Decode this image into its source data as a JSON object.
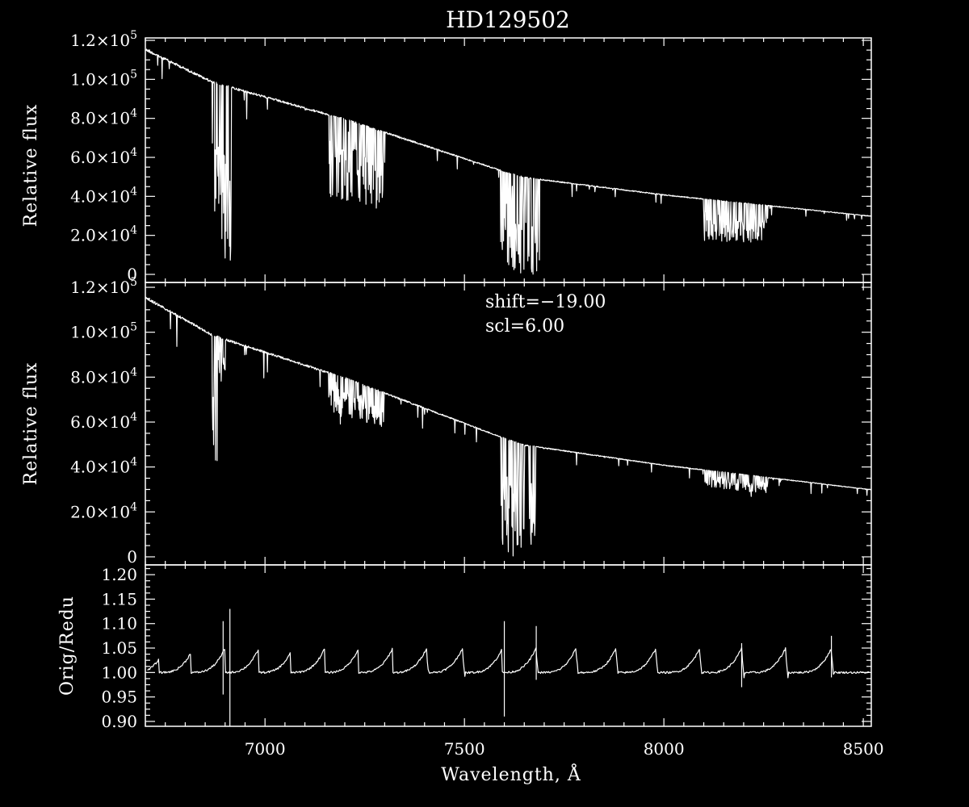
{
  "chart_data": {
    "type": "line",
    "title": "HD129502",
    "xlabel": "Wavelength, Å",
    "xlim": [
      6700,
      8520
    ],
    "x_ticks": [
      7000,
      7500,
      8000,
      8500
    ],
    "x_minor_step": 50,
    "grid": false,
    "panels": [
      {
        "id": "original",
        "ylabel": "Relative flux",
        "ylim": [
          0,
          120000
        ],
        "y_ticks": [
          {
            "value": 0,
            "label": "0"
          },
          {
            "value": 20000,
            "label": "2.0×10",
            "exp": "4"
          },
          {
            "value": 40000,
            "label": "4.0×10",
            "exp": "4"
          },
          {
            "value": 60000,
            "label": "6.0×10",
            "exp": "4"
          },
          {
            "value": 80000,
            "label": "8.0×10",
            "exp": "4"
          },
          {
            "value": 100000,
            "label": "1.0×10",
            "exp": "5"
          },
          {
            "value": 120000,
            "label": "1.2×10",
            "exp": "5"
          }
        ],
        "continuum": [
          [
            6700,
            116000
          ],
          [
            6870,
            99000
          ],
          [
            7200,
            80000
          ],
          [
            7600,
            53000
          ],
          [
            7650,
            50000
          ],
          [
            8000,
            41000
          ],
          [
            8520,
            30000
          ]
        ],
        "absorption_bands": [
          {
            "from": 6868,
            "to": 6915,
            "depth": 0.94
          },
          {
            "from": 7160,
            "to": 7300,
            "depth": 0.55
          },
          {
            "from": 7590,
            "to": 7690,
            "depth": 1.0
          },
          {
            "from": 8100,
            "to": 8260,
            "depth": 0.55
          }
        ],
        "noise": 0.012
      },
      {
        "id": "corrected",
        "ylabel": "Relative flux",
        "ylim": [
          0,
          120000
        ],
        "y_ticks": [
          {
            "value": 0,
            "label": "0"
          },
          {
            "value": 20000,
            "label": "2.0×10",
            "exp": "4"
          },
          {
            "value": 40000,
            "label": "4.0×10",
            "exp": "4"
          },
          {
            "value": 60000,
            "label": "6.0×10",
            "exp": "4"
          },
          {
            "value": 80000,
            "label": "8.0×10",
            "exp": "4"
          },
          {
            "value": 100000,
            "label": "1.0×10",
            "exp": "5"
          },
          {
            "value": 120000,
            "label": "1.2×10",
            "exp": "5"
          }
        ],
        "continuum": [
          [
            6700,
            116000
          ],
          [
            6870,
            99000
          ],
          [
            7200,
            80000
          ],
          [
            7600,
            53000
          ],
          [
            7650,
            50000
          ],
          [
            8000,
            41000
          ],
          [
            8520,
            30000
          ]
        ],
        "absorption_bands": [
          {
            "from": 6868,
            "to": 6880,
            "depth": 0.58
          },
          {
            "from": 6880,
            "to": 6900,
            "depth": 0.2
          },
          {
            "from": 7160,
            "to": 7300,
            "depth": 0.22
          },
          {
            "from": 7590,
            "to": 7680,
            "depth": 1.0
          },
          {
            "from": 8100,
            "to": 8260,
            "depth": 0.2
          }
        ],
        "noise": 0.01,
        "annotations": [
          "shift=−19.00",
          "scl=6.00"
        ]
      },
      {
        "id": "ratio",
        "ylabel": "Orig/Redu",
        "ylim": [
          0.89,
          1.22
        ],
        "y_ticks": [
          {
            "value": 0.9,
            "label": "0.90"
          },
          {
            "value": 0.95,
            "label": "0.95"
          },
          {
            "value": 1.0,
            "label": "1.00"
          },
          {
            "value": 1.05,
            "label": "1.05"
          },
          {
            "value": 1.1,
            "label": "1.10"
          },
          {
            "value": 1.15,
            "label": "1.15"
          },
          {
            "value": 1.2,
            "label": "1.20"
          }
        ],
        "baseline": 1.0,
        "peaks": [
          6750,
          6820,
          6900,
          6985,
          7070,
          7150,
          7235,
          7320,
          7405,
          7495,
          7595,
          7680,
          7780,
          7880,
          7980,
          8090,
          8195,
          8305,
          8420
        ],
        "peak_height": 0.05,
        "spikes": [
          {
            "x": 6895,
            "top": 1.105,
            "bottom": 0.955
          },
          {
            "x": 6912,
            "top": 1.13,
            "bottom": 0.89
          },
          {
            "x": 7600,
            "top": 1.105,
            "bottom": 0.91
          },
          {
            "x": 7680,
            "top": 1.095,
            "bottom": 0.985
          },
          {
            "x": 8195,
            "top": 1.06,
            "bottom": 0.97
          },
          {
            "x": 8420,
            "top": 1.075,
            "bottom": 0.99
          }
        ]
      }
    ]
  }
}
